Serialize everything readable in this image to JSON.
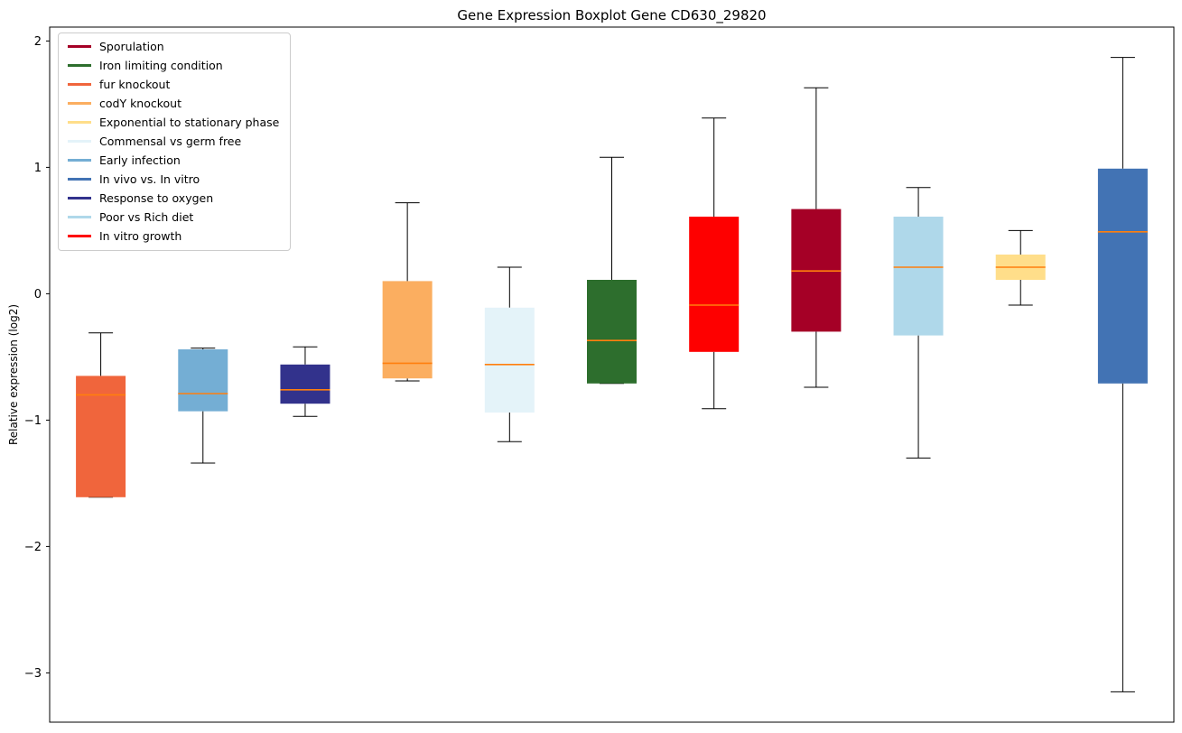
{
  "chart_data": {
    "type": "boxplot",
    "title": "Gene Expression Boxplot Gene CD630_29820",
    "ylabel": "Relative expression (log2)",
    "xlabel": "",
    "ylim": [
      -3.39,
      2.11
    ],
    "yticks": [
      {
        "value": 2,
        "label": "2"
      },
      {
        "value": 1,
        "label": "1"
      },
      {
        "value": 0,
        "label": "0"
      },
      {
        "value": -1,
        "label": "−1"
      },
      {
        "value": -2,
        "label": "−2"
      },
      {
        "value": -3,
        "label": "−3"
      }
    ],
    "grid": false,
    "legend_position": "upper left",
    "median_color": "#FF7F0E",
    "whisker_color": "#000000",
    "legend": [
      {
        "label": "Sporulation",
        "color": "#A50026"
      },
      {
        "label": "Iron limiting condition",
        "color": "#2D6E2D"
      },
      {
        "label": "fur knockout",
        "color": "#F0653C"
      },
      {
        "label": "codY knockout",
        "color": "#FBAE60"
      },
      {
        "label": "Exponential to stationary phase",
        "color": "#FFDE8A"
      },
      {
        "label": "Commensal vs germ free",
        "color": "#E4F3F9"
      },
      {
        "label": "Early infection",
        "color": "#74AED4"
      },
      {
        "label": "In vivo vs. In vitro",
        "color": "#4273B4"
      },
      {
        "label": "Response to oxygen",
        "color": "#32328C"
      },
      {
        "label": "Poor vs Rich diet",
        "color": "#AFD8EA"
      },
      {
        "label": "In vitro growth",
        "color": "#FE0000"
      }
    ],
    "series": [
      {
        "name": "fur knockout",
        "color": "#F0653C",
        "whislo": -1.61,
        "q1": -1.61,
        "med": -0.8,
        "q3": -0.65,
        "whishi": -0.31
      },
      {
        "name": "Early infection",
        "color": "#74AED4",
        "whislo": -1.34,
        "q1": -0.93,
        "med": -0.79,
        "q3": -0.44,
        "whishi": -0.43
      },
      {
        "name": "Response to oxygen",
        "color": "#32328C",
        "whislo": -0.97,
        "q1": -0.87,
        "med": -0.76,
        "q3": -0.56,
        "whishi": -0.42
      },
      {
        "name": "codY knockout",
        "color": "#FBAE60",
        "whislo": -0.69,
        "q1": -0.67,
        "med": -0.55,
        "q3": 0.1,
        "whishi": 0.72
      },
      {
        "name": "Commensal vs germ free",
        "color": "#E4F3F9",
        "whislo": -1.17,
        "q1": -0.94,
        "med": -0.56,
        "q3": -0.11,
        "whishi": 0.21
      },
      {
        "name": "Iron limiting condition",
        "color": "#2D6E2D",
        "whislo": -0.71,
        "q1": -0.71,
        "med": -0.37,
        "q3": 0.11,
        "whishi": 1.08
      },
      {
        "name": "In vitro growth",
        "color": "#FE0000",
        "whislo": -0.91,
        "q1": -0.46,
        "med": -0.09,
        "q3": 0.61,
        "whishi": 1.39
      },
      {
        "name": "Sporulation",
        "color": "#A50026",
        "whislo": -0.74,
        "q1": -0.3,
        "med": 0.18,
        "q3": 0.67,
        "whishi": 1.63
      },
      {
        "name": "Poor vs Rich diet",
        "color": "#AFD8EA",
        "whislo": -1.3,
        "q1": -0.33,
        "med": 0.21,
        "q3": 0.61,
        "whishi": 0.84
      },
      {
        "name": "Exponential to stationary phase",
        "color": "#FFDE8A",
        "whislo": -0.09,
        "q1": 0.11,
        "med": 0.21,
        "q3": 0.31,
        "whishi": 0.5
      },
      {
        "name": "In vivo vs. In vitro",
        "color": "#4273B4",
        "whislo": -3.15,
        "q1": -0.71,
        "med": 0.49,
        "q3": 0.99,
        "whishi": 1.87
      }
    ]
  }
}
